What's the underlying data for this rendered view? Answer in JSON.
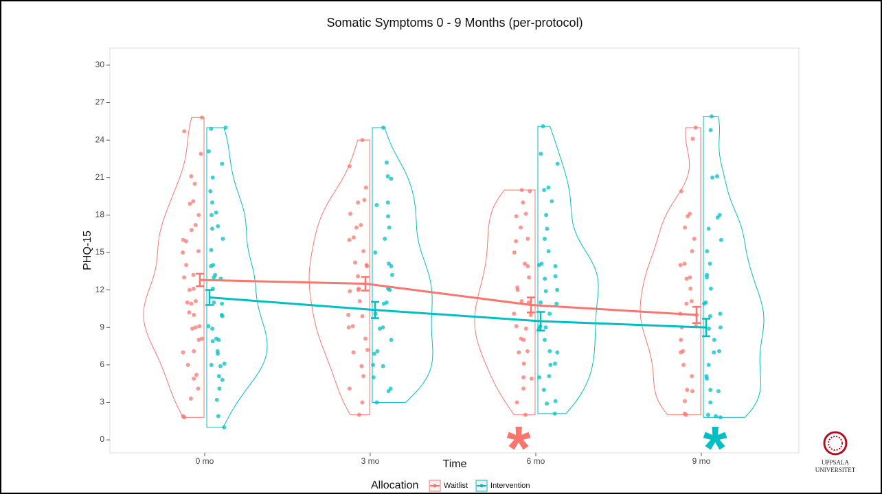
{
  "chart_data": {
    "type": "split-violin",
    "title": "Somatic Symptoms 0 - 9 Months (per-protocol)",
    "x_label": "Time",
    "y_label": "PHQ-15",
    "categories": [
      "0 mo",
      "3 mo",
      "6 mo",
      "9 mo"
    ],
    "ylim": [
      -1.04,
      31.37
    ],
    "yticks": [
      0,
      3,
      6,
      9,
      12,
      15,
      18,
      21,
      24,
      27,
      30
    ],
    "legend_title": "Allocation",
    "series": [
      {
        "name": "Waitlist",
        "color": "#f8766d",
        "values": [
          12.8,
          12.5,
          10.8,
          10.0
        ],
        "errors": [
          0.5,
          0.55,
          0.6,
          0.65
        ],
        "points": [
          [
            25.8,
            24.7,
            22.9,
            21.1,
            20.5,
            19.1,
            18.9,
            18.0,
            17.2,
            16.8,
            16.0,
            15.9,
            15.1,
            15.0,
            14.0,
            13.2,
            13.0,
            12.1,
            12.0,
            11.1,
            11.0,
            10.9,
            10.2,
            10.0,
            9.1,
            9.0,
            8.9,
            8.1,
            8.0,
            7.1,
            7.0,
            6.0,
            5.2,
            4.9,
            4.1,
            3.3,
            1.9,
            1.8
          ],
          [
            24.0,
            21.9,
            20.2,
            19.2,
            19.0,
            18.1,
            17.2,
            17.0,
            16.2,
            16.0,
            15.1,
            14.2,
            14.0,
            13.9,
            13.1,
            12.1,
            12.0,
            11.9,
            11.1,
            10.0,
            9.9,
            9.1,
            9.0,
            8.1,
            7.2,
            7.0,
            5.9,
            5.1,
            4.1,
            3.0,
            2.0
          ],
          [
            20.0,
            19.9,
            19.0,
            18.1,
            17.9,
            17.0,
            16.1,
            15.9,
            15.0,
            14.1,
            13.9,
            13.0,
            12.2,
            12.0,
            11.1,
            11.0,
            10.1,
            10.0,
            9.1,
            8.9,
            8.1,
            8.0,
            7.1,
            7.0,
            6.1,
            5.0,
            4.9,
            4.1,
            3.0,
            2.0
          ],
          [
            25.0,
            24.1,
            19.9,
            18.1,
            17.9,
            17.0,
            16.1,
            15.1,
            14.1,
            14.0,
            13.0,
            12.9,
            12.1,
            11.1,
            10.9,
            10.1,
            10.0,
            9.1,
            9.0,
            8.0,
            7.1,
            7.0,
            6.0,
            5.1,
            4.0,
            3.9,
            3.1,
            2.1,
            2.0
          ]
        ]
      },
      {
        "name": "Intervention",
        "color": "#00bfc4",
        "values": [
          11.4,
          10.4,
          9.5,
          9.0
        ],
        "errors": [
          0.6,
          0.65,
          0.75,
          0.7
        ],
        "points": [
          [
            25.0,
            24.9,
            23.1,
            22.1,
            21.0,
            19.9,
            19.0,
            18.2,
            18.0,
            17.1,
            16.9,
            16.1,
            15.2,
            14.0,
            13.9,
            13.2,
            13.0,
            12.9,
            12.1,
            11.0,
            10.9,
            10.0,
            9.9,
            9.1,
            8.9,
            8.1,
            8.0,
            7.9,
            7.1,
            6.9,
            6.1,
            6.0,
            5.9,
            5.1,
            4.8,
            4.1,
            3.2,
            1.9,
            1.0
          ],
          [
            25.0,
            22.2,
            21.1,
            20.9,
            19.0,
            18.8,
            17.9,
            17.0,
            16.1,
            15.0,
            14.1,
            13.9,
            13.2,
            12.1,
            12.0,
            11.0,
            10.9,
            10.1,
            9.0,
            8.9,
            8.0,
            7.1,
            6.9,
            6.0,
            5.9,
            5.0,
            4.1,
            3.9,
            3.0
          ],
          [
            25.1,
            22.9,
            22.1,
            20.2,
            20.0,
            19.1,
            18.0,
            16.9,
            16.1,
            15.1,
            14.1,
            14.0,
            13.9,
            13.1,
            12.9,
            12.0,
            11.9,
            11.0,
            10.9,
            10.1,
            9.1,
            9.0,
            8.9,
            8.0,
            7.1,
            7.0,
            6.1,
            6.0,
            5.1,
            5.0,
            4.0,
            3.1,
            2.9,
            2.1
          ],
          [
            25.9,
            24.8,
            21.1,
            21.0,
            18.0,
            17.8,
            16.9,
            16.0,
            15.1,
            14.1,
            13.2,
            13.0,
            12.1,
            11.0,
            10.9,
            10.1,
            9.9,
            9.0,
            8.9,
            8.0,
            7.1,
            7.0,
            6.0,
            5.1,
            4.9,
            4.0,
            3.9,
            3.0,
            2.0,
            1.9,
            1.8
          ]
        ]
      }
    ],
    "annotations": [
      {
        "text": "*",
        "color": "#f8766d"
      },
      {
        "text": "*",
        "color": "#00bfc4"
      }
    ]
  },
  "logo_text": [
    "UPPSALA",
    "UNIVERSITET"
  ]
}
